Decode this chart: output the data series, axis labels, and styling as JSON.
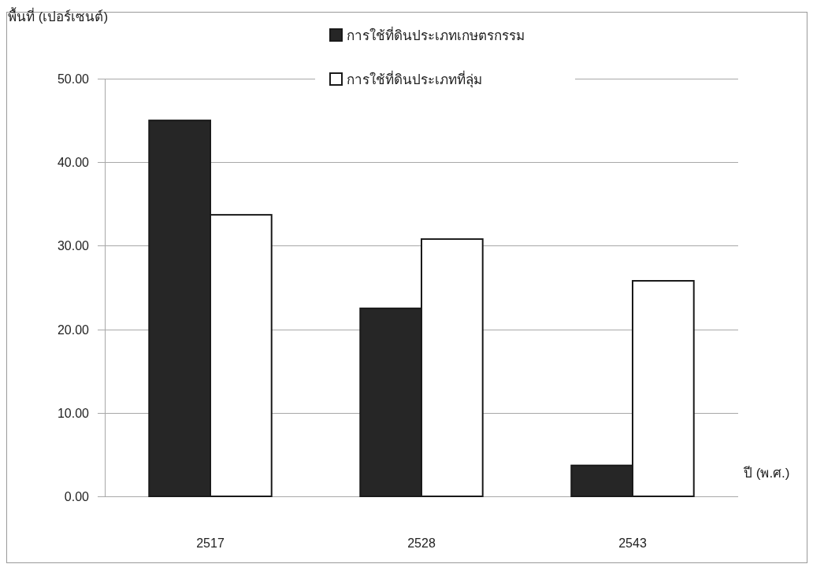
{
  "chart_data": {
    "type": "bar",
    "ylabel": "พื้นที่ (เปอร์เซนต์)",
    "xlabel": "ปี (พ.ศ.)",
    "categories": [
      "2517",
      "2528",
      "2543"
    ],
    "series": [
      {
        "name": "การใช้ที่ดินประเภทเกษตรกรรม",
        "color": "#262626",
        "values": [
          45.0,
          22.5,
          3.7
        ]
      },
      {
        "name": "การใช้ที่ดินประเภทที่ลุ่ม",
        "color": "#ffffff",
        "values": [
          33.7,
          30.8,
          25.8
        ]
      }
    ],
    "ylim": [
      0,
      50
    ],
    "yticks": [
      {
        "value": 0,
        "label": "0.00"
      },
      {
        "value": 10,
        "label": "10.00"
      },
      {
        "value": 20,
        "label": "20.00"
      },
      {
        "value": 30,
        "label": "30.00"
      },
      {
        "value": 40,
        "label": "40.00"
      },
      {
        "value": 50,
        "label": "50.00"
      }
    ],
    "grid": "y",
    "legend": "top"
  }
}
